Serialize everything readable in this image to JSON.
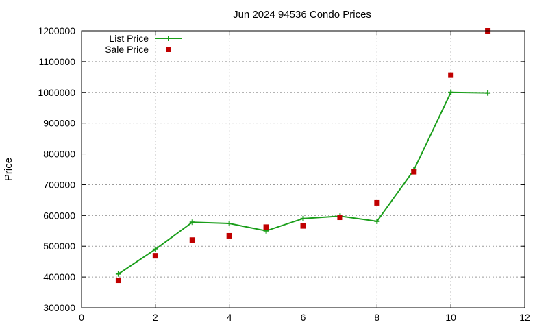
{
  "chart_data": {
    "type": "line",
    "title": "Jun 2024 94536 Condo Prices",
    "xlabel": "",
    "ylabel": "Price",
    "xlim": [
      0,
      12
    ],
    "ylim": [
      300000,
      1200000
    ],
    "xticks": [
      0,
      2,
      4,
      6,
      8,
      10,
      12
    ],
    "yticks": [
      300000,
      400000,
      500000,
      600000,
      700000,
      800000,
      900000,
      1000000,
      1100000,
      1200000
    ],
    "grid": true,
    "legend_position": "top-left",
    "series": [
      {
        "name": "List Price",
        "style": "line-with-plus-markers",
        "color": "#1a9e1a",
        "x": [
          1,
          2,
          3,
          4,
          5,
          6,
          7,
          8,
          9,
          10,
          11
        ],
        "y": [
          410000,
          490000,
          578000,
          574000,
          550000,
          590000,
          598000,
          581000,
          748000,
          1000000,
          998000
        ]
      },
      {
        "name": "Sale Price",
        "style": "square-markers",
        "color": "#c00000",
        "x": [
          1,
          2,
          3,
          4,
          5,
          6,
          7,
          8,
          9,
          10,
          11
        ],
        "y": [
          389000,
          469000,
          520000,
          534000,
          562000,
          566000,
          594000,
          641000,
          742000,
          1056000,
          1200000
        ]
      }
    ]
  }
}
